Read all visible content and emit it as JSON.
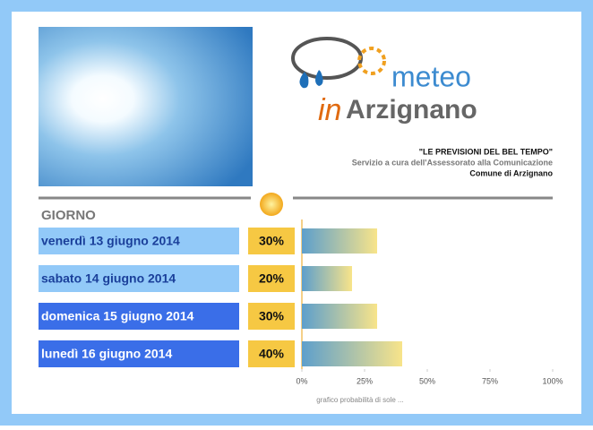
{
  "header": {
    "logo_word": "meteo",
    "logo_in": "in",
    "logo_town": "Arzignano",
    "headline": "\"LE PREVISIONI DEL BEL TEMPO\"",
    "service": "Servizio a cura dell'Assessorato alla Comunicazione",
    "town": "Comune di Arzignano"
  },
  "chart_data": {
    "type": "bar",
    "category_header": "GIORNO",
    "categories": [
      "venerdì 13 giugno 2014",
      "sabato 14 giugno 2014",
      "domenica 15 giugno 2014",
      "lunedì 16 giugno 2014"
    ],
    "values": [
      30,
      20,
      30,
      40
    ],
    "value_labels": [
      "30%",
      "20%",
      "30%",
      "40%"
    ],
    "row_colors": [
      "#92c9f8",
      "#92c9f8",
      "#3a6ee8",
      "#3a6ee8"
    ],
    "xlim": [
      0,
      100
    ],
    "xticks": [
      {
        "value": 0,
        "label": "0%"
      },
      {
        "value": 25,
        "label": "25%"
      },
      {
        "value": 50,
        "label": "50%"
      },
      {
        "value": 75,
        "label": "75%"
      },
      {
        "value": 100,
        "label": "100%"
      }
    ],
    "xlabel": "grafico probabilità di sole ..."
  }
}
